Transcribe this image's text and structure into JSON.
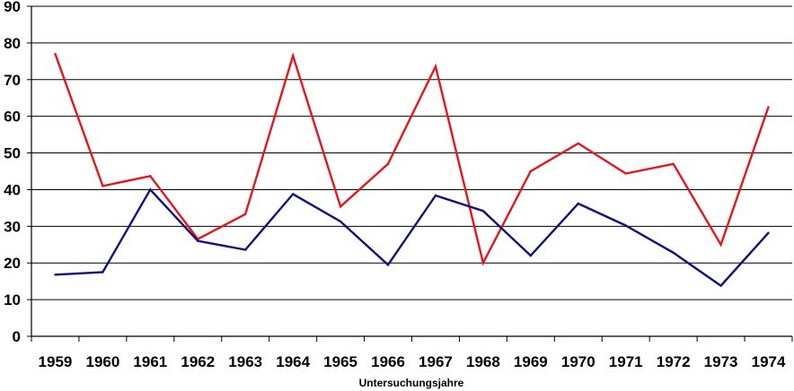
{
  "chart_data": {
    "type": "line",
    "title": "",
    "xlabel": "Untersuchungsjahre",
    "ylabel": "",
    "ylim": [
      0,
      90
    ],
    "yticks": [
      0,
      10,
      20,
      30,
      40,
      50,
      60,
      70,
      80,
      90
    ],
    "grid": "horizontal",
    "legend": "none",
    "categories": [
      "1959",
      "1960",
      "1961",
      "1962",
      "1963",
      "1964",
      "1965",
      "1966",
      "1967",
      "1968",
      "1969",
      "1970",
      "1971",
      "1972",
      "1973",
      "1974"
    ],
    "series": [
      {
        "color": "#e8141c",
        "values": [
          77,
          41,
          43.7,
          26.5,
          33.3,
          76.5,
          35.4,
          47,
          73.6,
          20,
          45,
          52.6,
          44.4,
          47,
          25,
          62.5
        ]
      },
      {
        "color": "#10127a",
        "values": [
          16.8,
          17.5,
          40,
          26,
          23.6,
          38.8,
          31.3,
          19.5,
          38.4,
          34.2,
          22,
          36.2,
          30.2,
          22.8,
          13.8,
          28.2
        ]
      }
    ]
  }
}
